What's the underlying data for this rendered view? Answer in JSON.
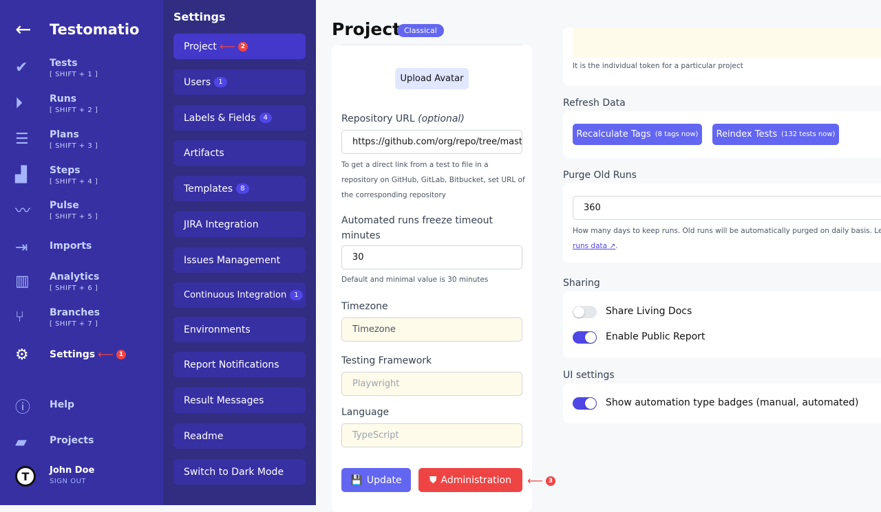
{
  "nav": {
    "brand": "Testomatio",
    "items": [
      {
        "label": "Tests",
        "shortcut": "[ SHIFT + 1 ]",
        "icon": "check-icon"
      },
      {
        "label": "Runs",
        "shortcut": "[ SHIFT + 2 ]",
        "icon": "play-circle-icon"
      },
      {
        "label": "Plans",
        "shortcut": "[ SHIFT + 3 ]",
        "icon": "list-check-icon"
      },
      {
        "label": "Steps",
        "shortcut": "[ SHIFT + 4 ]",
        "icon": "stairs-icon"
      },
      {
        "label": "Pulse",
        "shortcut": "[ SHIFT + 5 ]",
        "icon": "pulse-icon"
      },
      {
        "label": "Imports",
        "icon": "import-icon"
      },
      {
        "label": "Analytics",
        "shortcut": "[ SHIFT + 6 ]",
        "icon": "chart-icon"
      },
      {
        "label": "Branches",
        "shortcut": "[ SHIFT + 7 ]",
        "icon": "branch-icon"
      },
      {
        "label": "Settings",
        "icon": "gear-icon",
        "marker": "1"
      },
      {
        "label": "Help",
        "icon": "help-icon"
      },
      {
        "label": "Projects",
        "icon": "folder-icon"
      }
    ],
    "user": {
      "name": "John Doe",
      "signout": "SIGN OUT"
    }
  },
  "settings": {
    "title": "Settings",
    "items": [
      {
        "label": "Project",
        "marker": "2"
      },
      {
        "label": "Users",
        "count": "1"
      },
      {
        "label": "Labels & Fields",
        "count": "4"
      },
      {
        "label": "Artifacts"
      },
      {
        "label": "Templates",
        "count": "8"
      },
      {
        "label": "JIRA Integration"
      },
      {
        "label": "Issues Management"
      },
      {
        "label": "Continuous Integration",
        "count": "1"
      },
      {
        "label": "Environments"
      },
      {
        "label": "Report Notifications"
      },
      {
        "label": "Result Messages"
      },
      {
        "label": "Readme"
      },
      {
        "label": "Switch to Dark Mode"
      }
    ]
  },
  "page": {
    "title": "Project",
    "badge": "Classical"
  },
  "form": {
    "upload_avatar": "Upload Avatar",
    "repo_label": "Repository URL",
    "repo_optional": "(optional)",
    "repo_value": "https://github.com/org/repo/tree/master",
    "repo_help": "To get a direct link from a test to file in a repository on GitHub, GitLab, Bitbucket, set URL of the corresponding repository",
    "freeze_label": "Automated runs freeze timeout minutes",
    "freeze_value": "30",
    "freeze_help": "Default and minimal value is 30 minutes",
    "tz_label": "Timezone",
    "tz_value": "Timezone",
    "fw_label": "Testing Framework",
    "fw_value": "Playwright",
    "lang_label": "Language",
    "lang_value": "TypeScript",
    "update": "Update",
    "admin": "Administration",
    "admin_marker": "3"
  },
  "right": {
    "token_help": "It is the individual token for a particular project",
    "refresh_title": "Refresh Data",
    "recalc": "Recalculate Tags",
    "recalc_note": "(8 tags now)",
    "reindex": "Reindex Tests",
    "reindex_note": "(132 tests now)",
    "purge_title": "Purge Old Runs",
    "purge_value": "360",
    "purge_help": "How many days to keep runs. Old runs will be automatically purged on daily basis. Learn",
    "purge_link": "runs data",
    "sharing_title": "Sharing",
    "share_docs": "Share Living Docs",
    "share_docs_on": false,
    "public_report": "Enable Public Report",
    "public_report_on": true,
    "ui_title": "UI settings",
    "badges": "Show automation type badges (manual, automated)",
    "badges_on": true
  },
  "colors": {
    "primary": "#6366f1",
    "danger": "#ef4444",
    "sidebar": "#3730a3"
  }
}
